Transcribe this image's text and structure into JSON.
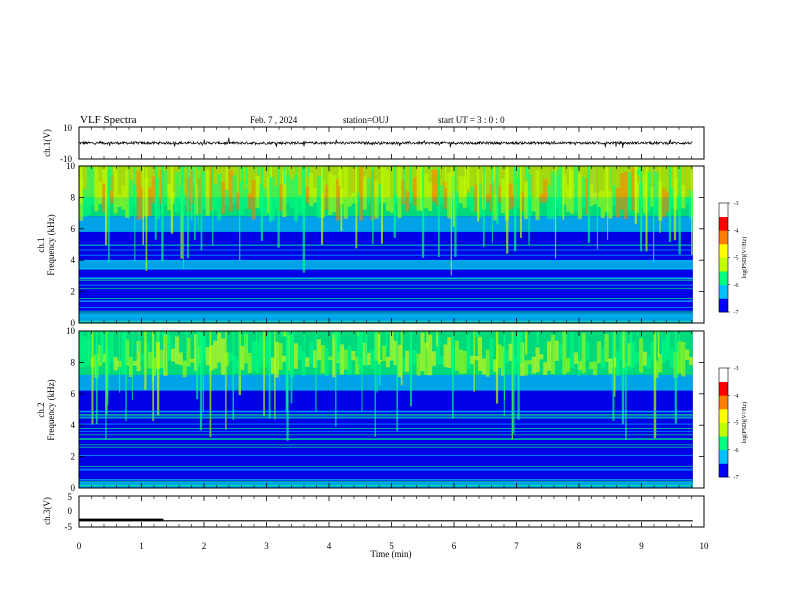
{
  "header": {
    "title": "VLF Spectra",
    "date": "Feb. 7 , 2024",
    "station": "station=OUJ",
    "start": "start UT = 3 : 0 : 0"
  },
  "chart_data": [
    {
      "id": "ch1-waveform",
      "type": "line",
      "ylabel": "ch.1(V)",
      "ylim": [
        -10,
        10
      ],
      "yticks": [
        "10",
        "-10"
      ],
      "xlim": [
        0,
        10
      ],
      "baseline": 0,
      "color": "#000000"
    },
    {
      "id": "ch1-spectrogram",
      "type": "heatmap",
      "ylabel": "ch.1 Frequency (kHz)",
      "ylim": [
        0,
        10
      ],
      "yticks": [
        "0",
        "2",
        "4",
        "6",
        "8",
        "10"
      ],
      "xlim": [
        0,
        10
      ],
      "colorbar": {
        "label": "log(PSD)(V²/Hz)",
        "ticks": [
          "-3",
          "-4",
          "-5",
          "-6",
          "-7"
        ],
        "range": [
          -7,
          -3
        ]
      }
    },
    {
      "id": "ch2-spectrogram",
      "type": "heatmap",
      "ylabel": "ch.2 Frequency (kHz)",
      "ylim": [
        0,
        10
      ],
      "yticks": [
        "0",
        "2",
        "4",
        "6",
        "8",
        "10"
      ],
      "xlim": [
        0,
        10
      ],
      "colorbar": {
        "label": "log(PSD)(V²/Hz)",
        "ticks": [
          "-3",
          "-4",
          "-5",
          "-6",
          "-7"
        ],
        "range": [
          -7,
          -3
        ]
      }
    },
    {
      "id": "ch3-waveform",
      "type": "line",
      "ylabel": "ch.3(V)",
      "ylim": [
        -5,
        5
      ],
      "yticks": [
        "5",
        "0",
        "-5"
      ],
      "xlim": [
        0,
        10
      ],
      "baseline": -3,
      "step": {
        "x_end": 1.35,
        "y": -2.7
      },
      "color": "#000000"
    }
  ],
  "xaxis": {
    "label": "Time (min)",
    "ticks": [
      "0",
      "1",
      "2",
      "3",
      "4",
      "5",
      "6",
      "7",
      "8",
      "9",
      "10"
    ]
  },
  "colormap": [
    "#000060",
    "#0000ff",
    "#00c0ff",
    "#00ff80",
    "#c0ff00",
    "#ffff00",
    "#ff8000",
    "#ff0000",
    "#ffffff"
  ]
}
